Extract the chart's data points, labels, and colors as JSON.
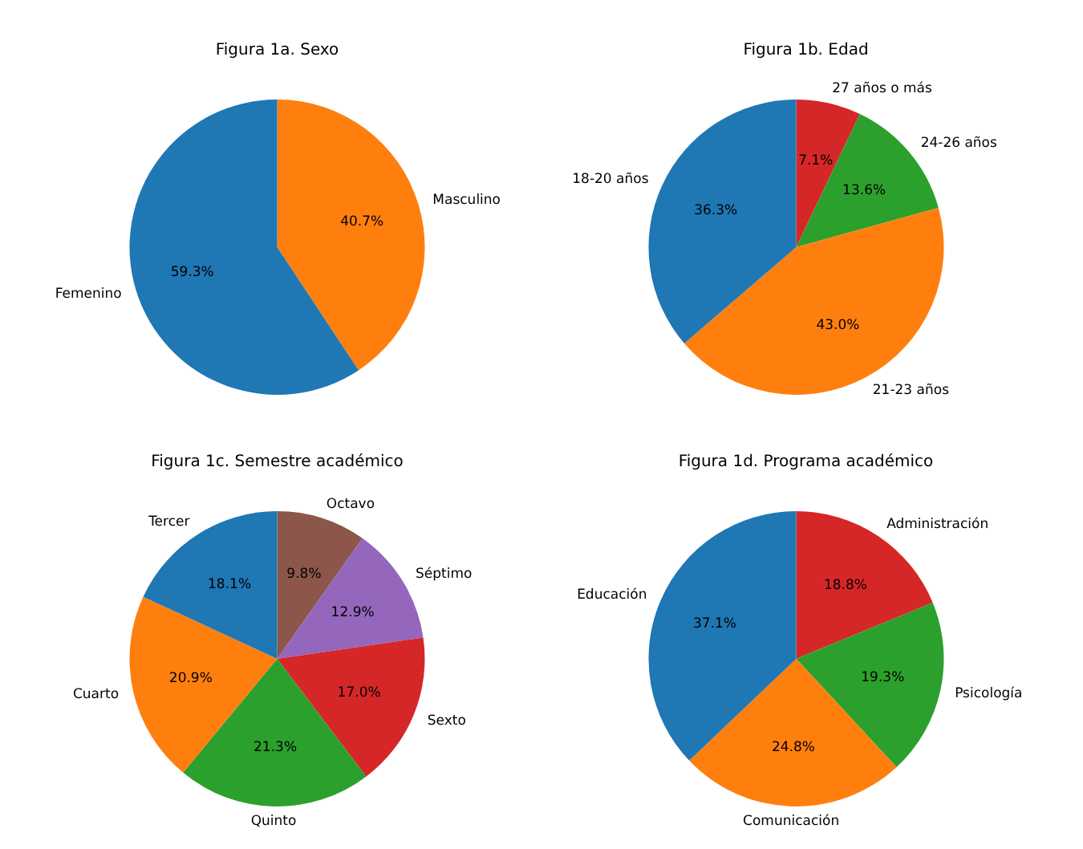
{
  "chart_data": [
    {
      "type": "pie",
      "title": "Figura 1a. Sexo",
      "categories": [
        "Masculino",
        "Femenino"
      ],
      "values": [
        40.7,
        59.3
      ],
      "colors": [
        "#ff7f0e",
        "#1f77b4"
      ],
      "value_labels": [
        "40.7%",
        "59.3%"
      ]
    },
    {
      "type": "pie",
      "title": "Figura 1b. Edad",
      "categories": [
        "27 años o más",
        "24-26 años",
        "21-23 años",
        "18-20 años"
      ],
      "values": [
        7.1,
        13.6,
        43.0,
        36.3
      ],
      "colors": [
        "#d62728",
        "#2ca02c",
        "#ff7f0e",
        "#1f77b4"
      ],
      "value_labels": [
        "7.1%",
        "13.6%",
        "43.0%",
        "36.3%"
      ]
    },
    {
      "type": "pie",
      "title": "Figura 1c. Semestre académico",
      "categories": [
        "Octavo",
        "Séptimo",
        "Sexto",
        "Quinto",
        "Cuarto",
        "Tercer"
      ],
      "values": [
        9.8,
        12.9,
        17.0,
        21.3,
        20.9,
        18.1
      ],
      "colors": [
        "#8c564b",
        "#9467bd",
        "#d62728",
        "#2ca02c",
        "#ff7f0e",
        "#1f77b4"
      ],
      "value_labels": [
        "9.8%",
        "12.9%",
        "17.0%",
        "21.3%",
        "20.9%",
        "18.1%"
      ]
    },
    {
      "type": "pie",
      "title": "Figura 1d. Programa académico",
      "categories": [
        "Administración",
        "Psicología",
        "Comunicación",
        "Educación"
      ],
      "values": [
        18.8,
        19.3,
        24.8,
        37.1
      ],
      "colors": [
        "#d62728",
        "#2ca02c",
        "#ff7f0e",
        "#1f77b4"
      ],
      "value_labels": [
        "18.8%",
        "19.3%",
        "24.8%",
        "37.1%"
      ]
    }
  ]
}
